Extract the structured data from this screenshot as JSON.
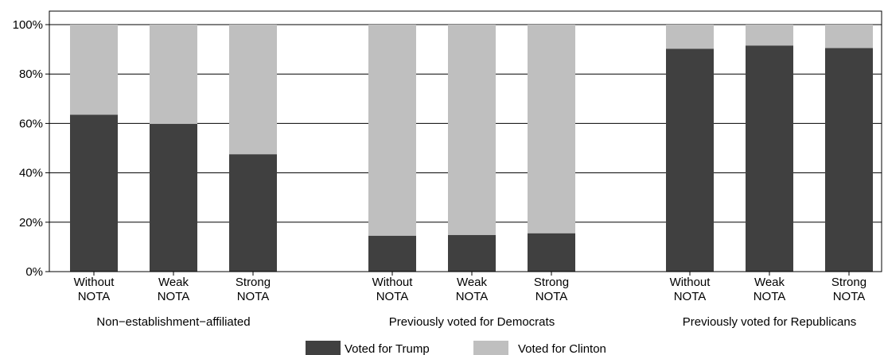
{
  "chart_data": {
    "type": "bar",
    "stacked": true,
    "percent_stacked": true,
    "ylim": [
      0,
      100
    ],
    "yticks": [
      0,
      20,
      40,
      60,
      80,
      100
    ],
    "ytick_labels": [
      "0%",
      "20%",
      "40%",
      "60%",
      "80%",
      "100%"
    ],
    "grid": "horizontal",
    "legend_position": "bottom",
    "series": [
      {
        "name": "Voted for Trump",
        "color": "#404040"
      },
      {
        "name": "Voted for Clinton",
        "color": "#bfbfbf"
      }
    ],
    "groups": [
      {
        "label": "Non−establishment−affiliated",
        "bars": [
          {
            "line1": "Without",
            "line2": "NOTA",
            "trump": 63.5
          },
          {
            "line1": "Weak",
            "line2": "NOTA",
            "trump": 59.8
          },
          {
            "line1": "Strong",
            "line2": "NOTA",
            "trump": 47.5
          }
        ]
      },
      {
        "label": "Previously voted for Democrats",
        "bars": [
          {
            "line1": "Without",
            "line2": "NOTA",
            "trump": 14.5
          },
          {
            "line1": "Weak",
            "line2": "NOTA",
            "trump": 14.8
          },
          {
            "line1": "Strong",
            "line2": "NOTA",
            "trump": 15.5
          }
        ]
      },
      {
        "label": "Previously voted for Republicans",
        "bars": [
          {
            "line1": "Without",
            "line2": "NOTA",
            "trump": 90.2
          },
          {
            "line1": "Weak",
            "line2": "NOTA",
            "trump": 91.5
          },
          {
            "line1": "Strong",
            "line2": "NOTA",
            "trump": 90.5
          }
        ]
      }
    ]
  }
}
